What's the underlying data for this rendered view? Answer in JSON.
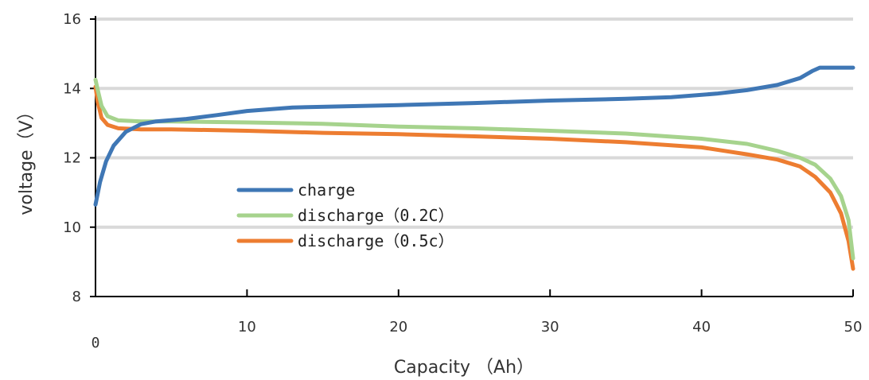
{
  "chart_data": {
    "type": "line",
    "title": "",
    "xlabel": "Capacity （Ah）",
    "ylabel": "voltage（V）",
    "xlim": [
      0,
      50
    ],
    "ylim": [
      8,
      16
    ],
    "x_ticks": [
      "0",
      "10",
      "20",
      "30",
      "40",
      "50"
    ],
    "y_ticks": [
      "8",
      "10",
      "12",
      "14",
      "16"
    ],
    "grid": "horizontal",
    "legend_position": "lower-left, inside plot",
    "series": [
      {
        "name": "charge",
        "color": "#3F77B5",
        "points": [
          [
            0,
            10.65
          ],
          [
            0.3,
            11.3
          ],
          [
            0.7,
            11.9
          ],
          [
            1.2,
            12.35
          ],
          [
            2,
            12.75
          ],
          [
            3,
            12.97
          ],
          [
            4,
            13.05
          ],
          [
            6,
            13.12
          ],
          [
            8,
            13.23
          ],
          [
            10,
            13.35
          ],
          [
            13,
            13.45
          ],
          [
            20,
            13.52
          ],
          [
            25,
            13.58
          ],
          [
            30,
            13.65
          ],
          [
            35,
            13.7
          ],
          [
            38,
            13.75
          ],
          [
            41,
            13.85
          ],
          [
            43,
            13.95
          ],
          [
            45,
            14.1
          ],
          [
            46.5,
            14.3
          ],
          [
            47.3,
            14.5
          ],
          [
            47.8,
            14.6
          ],
          [
            50,
            14.6
          ]
        ]
      },
      {
        "name": "discharge（0.2C）",
        "color": "#A6D38D",
        "points": [
          [
            0,
            14.25
          ],
          [
            0.15,
            13.95
          ],
          [
            0.4,
            13.5
          ],
          [
            0.8,
            13.2
          ],
          [
            1.5,
            13.08
          ],
          [
            3,
            13.05
          ],
          [
            5,
            13.05
          ],
          [
            10,
            13.02
          ],
          [
            15,
            12.98
          ],
          [
            20,
            12.9
          ],
          [
            25,
            12.85
          ],
          [
            30,
            12.78
          ],
          [
            35,
            12.7
          ],
          [
            40,
            12.55
          ],
          [
            43,
            12.4
          ],
          [
            45,
            12.2
          ],
          [
            46.5,
            12.0
          ],
          [
            47.5,
            11.8
          ],
          [
            48.5,
            11.4
          ],
          [
            49.2,
            10.9
          ],
          [
            49.7,
            10.2
          ],
          [
            50,
            9.1
          ]
        ]
      },
      {
        "name": "discharge（0.5c）",
        "color": "#ED7D31",
        "points": [
          [
            0,
            14.05
          ],
          [
            0.15,
            13.6
          ],
          [
            0.4,
            13.15
          ],
          [
            0.8,
            12.95
          ],
          [
            1.5,
            12.85
          ],
          [
            3,
            12.82
          ],
          [
            5,
            12.82
          ],
          [
            10,
            12.78
          ],
          [
            15,
            12.72
          ],
          [
            20,
            12.68
          ],
          [
            25,
            12.62
          ],
          [
            30,
            12.55
          ],
          [
            35,
            12.45
          ],
          [
            40,
            12.3
          ],
          [
            43,
            12.1
          ],
          [
            45,
            11.95
          ],
          [
            46.5,
            11.75
          ],
          [
            47.5,
            11.45
          ],
          [
            48.5,
            11.0
          ],
          [
            49.2,
            10.4
          ],
          [
            49.7,
            9.6
          ],
          [
            50,
            8.8
          ]
        ]
      }
    ]
  }
}
